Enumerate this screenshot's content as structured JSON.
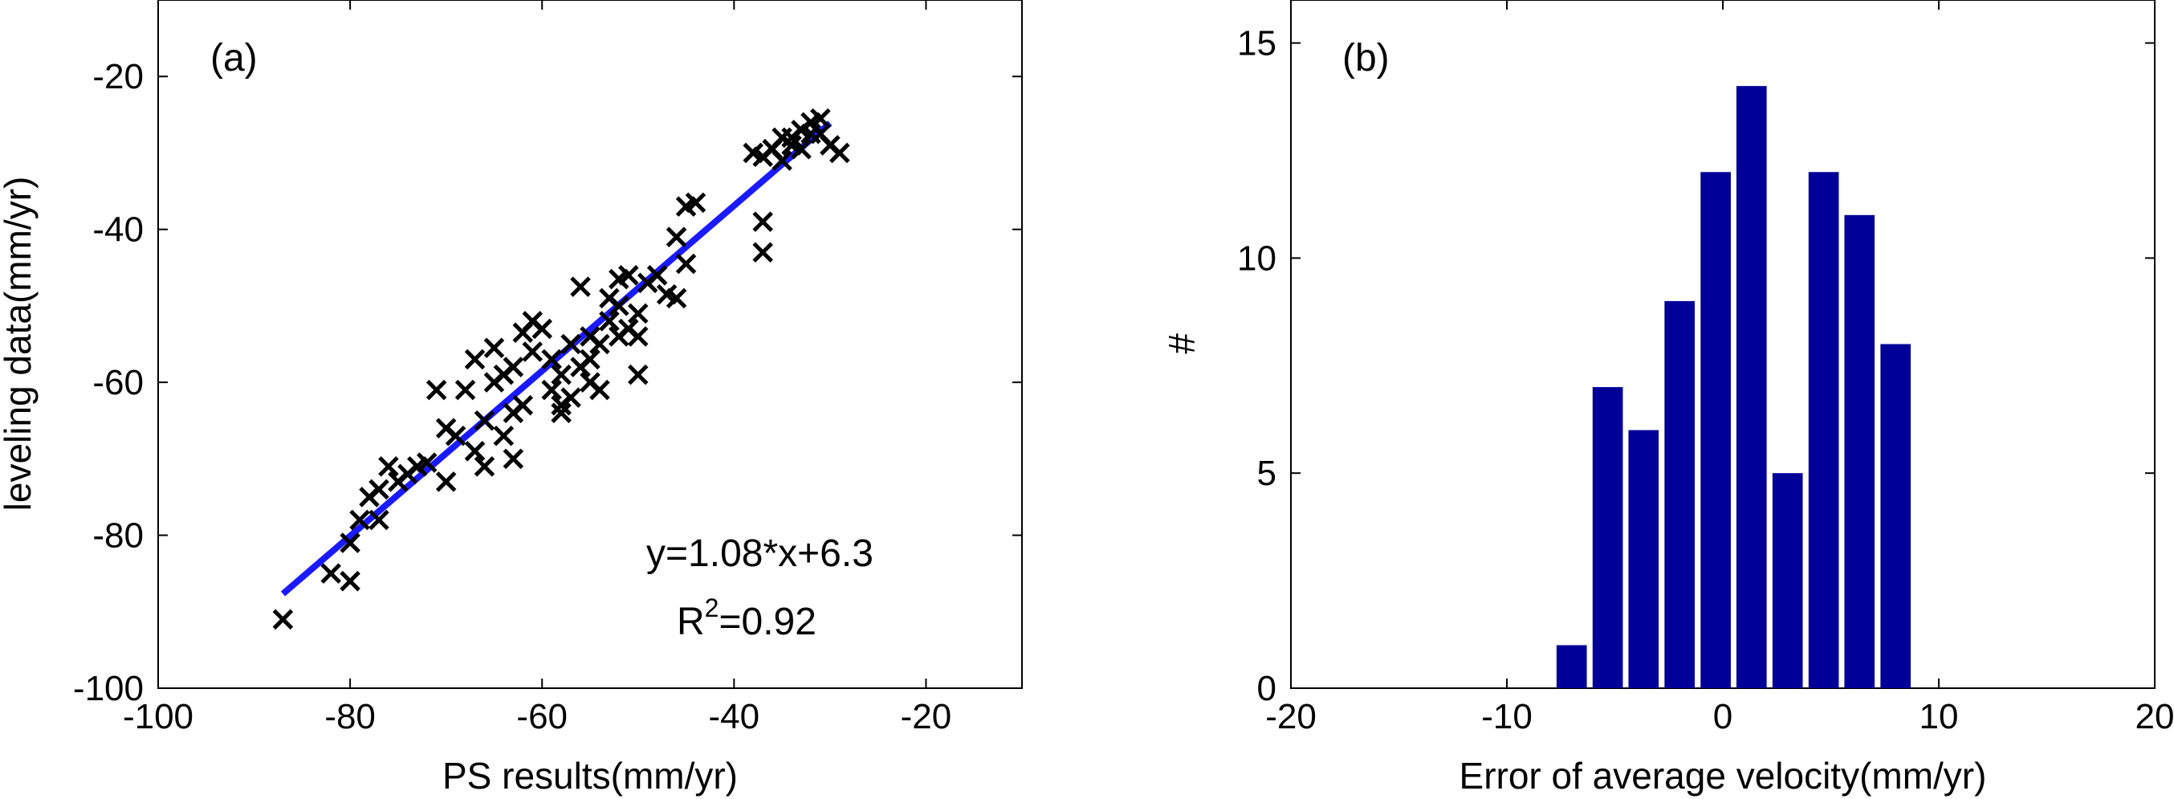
{
  "chart_data": [
    {
      "type": "scatter",
      "panel_label": "(a)",
      "xlabel": "PS results(mm/yr)",
      "ylabel": "leveling data(mm/yr)",
      "xlim": [
        -100,
        -10
      ],
      "ylim": [
        -100,
        -10
      ],
      "xticks": [
        -100,
        -80,
        -60,
        -40,
        -20
      ],
      "yticks": [
        -100,
        -80,
        -60,
        -40,
        -20
      ],
      "marker_color": "#000000",
      "fit_line": {
        "color": "#1a1aff",
        "slope": 1.08,
        "intercept": 6.3,
        "x_range": [
          -87,
          -30
        ]
      },
      "annotations": {
        "equation": "y=1.08*x+6.3",
        "r_base": "R",
        "r_sup": "2",
        "r_value": "=0.92"
      },
      "points": [
        [
          -87,
          -91
        ],
        [
          -82,
          -85
        ],
        [
          -80,
          -86
        ],
        [
          -80,
          -81
        ],
        [
          -79,
          -78
        ],
        [
          -78,
          -75
        ],
        [
          -77,
          -78
        ],
        [
          -77,
          -74
        ],
        [
          -76,
          -71
        ],
        [
          -75,
          -73
        ],
        [
          -74,
          -72
        ],
        [
          -73,
          -71
        ],
        [
          -72,
          -70.5
        ],
        [
          -71,
          -61
        ],
        [
          -70,
          -66
        ],
        [
          -70,
          -73
        ],
        [
          -69,
          -67
        ],
        [
          -68,
          -61
        ],
        [
          -67,
          -69
        ],
        [
          -67,
          -57
        ],
        [
          -66,
          -71
        ],
        [
          -66,
          -65
        ],
        [
          -65,
          -60
        ],
        [
          -65,
          -55.5
        ],
        [
          -64,
          -59
        ],
        [
          -64,
          -67
        ],
        [
          -63,
          -70
        ],
        [
          -63,
          -64
        ],
        [
          -63,
          -58
        ],
        [
          -62,
          -53.5
        ],
        [
          -62,
          -63
        ],
        [
          -61,
          -56
        ],
        [
          -61,
          -52
        ],
        [
          -60,
          -53
        ],
        [
          -59,
          -57
        ],
        [
          -59,
          -61
        ],
        [
          -58,
          -63
        ],
        [
          -58,
          -64
        ],
        [
          -58,
          -59
        ],
        [
          -57,
          -55
        ],
        [
          -57,
          -62
        ],
        [
          -56,
          -47.5
        ],
        [
          -56,
          -58
        ],
        [
          -55,
          -54
        ],
        [
          -55,
          -60
        ],
        [
          -55,
          -57
        ],
        [
          -54,
          -55
        ],
        [
          -54,
          -61
        ],
        [
          -53,
          -52
        ],
        [
          -53,
          -49
        ],
        [
          -52,
          -50
        ],
        [
          -52,
          -46.5
        ],
        [
          -52,
          -54
        ],
        [
          -51,
          -53
        ],
        [
          -51,
          -46
        ],
        [
          -50,
          -51
        ],
        [
          -50,
          -59
        ],
        [
          -50,
          -54
        ],
        [
          -49,
          -47
        ],
        [
          -48,
          -46
        ],
        [
          -47,
          -48.5
        ],
        [
          -46,
          -41
        ],
        [
          -46,
          -49
        ],
        [
          -45,
          -44.5
        ],
        [
          -45,
          -37
        ],
        [
          -44,
          -36.5
        ],
        [
          -38,
          -30
        ],
        [
          -37,
          -30.5
        ],
        [
          -37,
          -39
        ],
        [
          -37,
          -43
        ],
        [
          -36,
          -29.5
        ],
        [
          -35,
          -28
        ],
        [
          -35,
          -31
        ],
        [
          -34,
          -28
        ],
        [
          -34,
          -29
        ],
        [
          -33,
          -27
        ],
        [
          -33,
          -29.5
        ],
        [
          -32,
          -26
        ],
        [
          -32,
          -27.5
        ],
        [
          -31,
          -25.5
        ],
        [
          -31,
          -27.5
        ],
        [
          -30,
          -29
        ],
        [
          -29,
          -30
        ]
      ]
    },
    {
      "type": "bar",
      "panel_label": "(b)",
      "xlabel": "Error of average velocity(mm/yr)",
      "ylabel": "#",
      "xlim": [
        -20,
        20
      ],
      "ylim": [
        0,
        16
      ],
      "xticks": [
        -20,
        -10,
        0,
        10,
        20
      ],
      "yticks": [
        0,
        5,
        10,
        15
      ],
      "bar_color": "#000099",
      "bar_width": 1.4,
      "x": [
        -7,
        -5.33,
        -3.67,
        -2,
        -0.33,
        1.33,
        3,
        4.67,
        6.33,
        8
      ],
      "values": [
        1,
        7,
        6,
        9,
        12,
        14,
        5,
        12,
        11,
        8
      ]
    }
  ]
}
